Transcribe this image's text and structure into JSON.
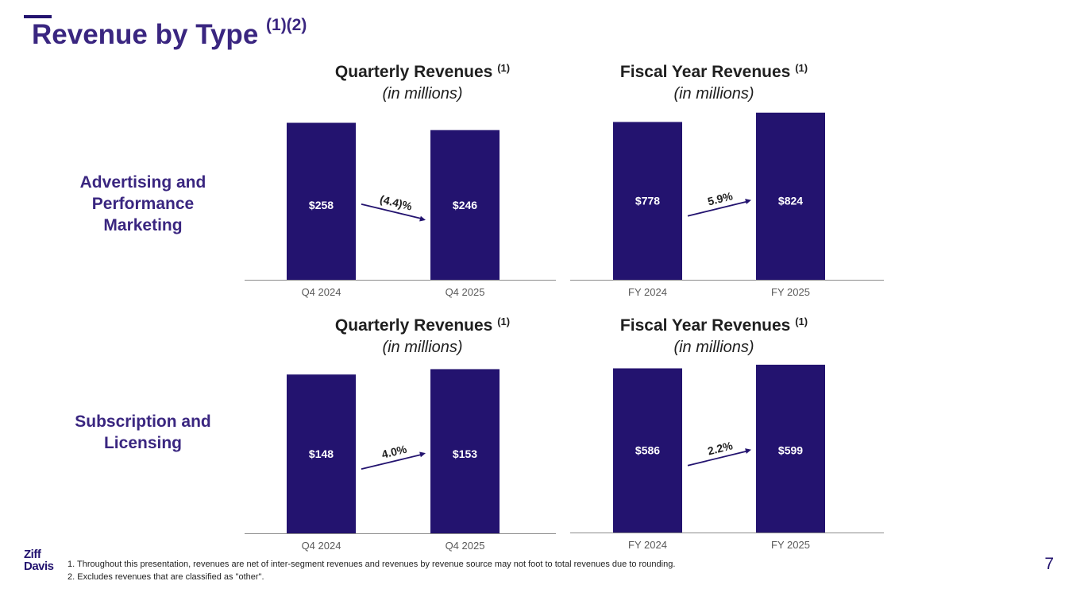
{
  "slide": {
    "title": "Revenue by Type",
    "title_sup": "(1)(2)",
    "page_number": "7",
    "logo_text": [
      "Ziff",
      "Davis"
    ],
    "footnotes": [
      "1.  Throughout this presentation, revenues are net of inter-segment revenues and revenues by revenue source may not foot to total revenues due to rounding.",
      "2.  Excludes revenues that are classified as \"other\"."
    ]
  },
  "rows": [
    {
      "label": [
        "Advertising and",
        "Performance",
        "Marketing"
      ]
    },
    {
      "label": [
        "Subscription and",
        "Licensing"
      ]
    }
  ],
  "colors": {
    "bar": "#23136f",
    "title": "#3a2680",
    "axis": "#8c8c8c",
    "tick": "#595959"
  },
  "chart_data": [
    {
      "type": "bar",
      "title": "Quarterly Revenues",
      "title_sup": "(1)",
      "subtitle": "(in millions)",
      "categories": [
        "Q4 2024",
        "Q4 2025"
      ],
      "values": [
        258,
        246
      ],
      "value_labels": [
        "$258",
        "$246"
      ],
      "change_label": "(4.4)%",
      "ylim": [
        0,
        290
      ]
    },
    {
      "type": "bar",
      "title": "Fiscal Year Revenues",
      "title_sup": "(1)",
      "subtitle": "(in millions)",
      "categories": [
        "FY 2024",
        "FY 2025"
      ],
      "values": [
        778,
        824
      ],
      "value_labels": [
        "$778",
        "$824"
      ],
      "change_label": "5.9%",
      "ylim": [
        0,
        870
      ]
    },
    {
      "type": "bar",
      "title": "Quarterly Revenues",
      "title_sup": "(1)",
      "subtitle": "(in millions)",
      "categories": [
        "Q4 2024",
        "Q4 2025"
      ],
      "values": [
        148,
        153
      ],
      "value_labels": [
        "$148",
        "$153"
      ],
      "change_label": "4.0%",
      "ylim": [
        0,
        160
      ]
    },
    {
      "type": "bar",
      "title": "Fiscal Year Revenues",
      "title_sup": "(1)",
      "subtitle": "(in millions)",
      "categories": [
        "FY 2024",
        "FY 2025"
      ],
      "values": [
        586,
        599
      ],
      "value_labels": [
        "$586",
        "$599"
      ],
      "change_label": "2.2%",
      "ylim": [
        0,
        610
      ]
    }
  ]
}
